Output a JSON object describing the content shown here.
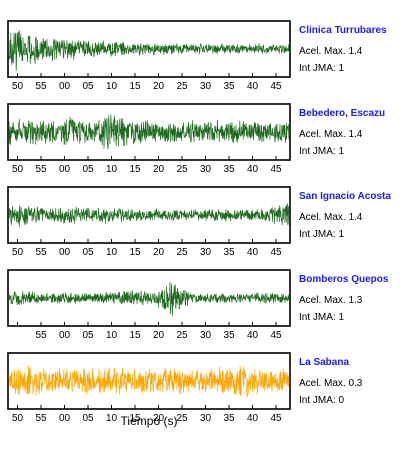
{
  "chart_data": {
    "type": "line",
    "xlabel": "Tiempo (s)",
    "x_tick_labels": [
      "50",
      "55",
      "00",
      "05",
      "10",
      "15",
      "20",
      "25",
      "30",
      "35",
      "40",
      "45"
    ],
    "panels": [
      {
        "name": "Clinica Turrubares",
        "info": [
          "Acel. Max. 1.4",
          "Int JMA: 1"
        ],
        "color": "#1e6b1e",
        "show_tick_labels": [
          "50",
          "55",
          "00",
          "05",
          "10",
          "15",
          "20",
          "25",
          "30",
          "35",
          "40",
          "45"
        ],
        "envelope": [
          0.95,
          0.8,
          0.6,
          0.5,
          0.45,
          0.42,
          0.38,
          0.35,
          0.33,
          0.3,
          0.28,
          0.26,
          0.25,
          0.24,
          0.24,
          0.23,
          0.22,
          0.22,
          0.21,
          0.2,
          0.2,
          0.2,
          0.19,
          0.19
        ]
      },
      {
        "name": "Bebedero, Escazu",
        "info": [
          "Acel. Max. 1.4",
          "Int JMA: 1"
        ],
        "color": "#1e6b1e",
        "show_tick_labels": [
          "50",
          "55",
          "00",
          "05",
          "10",
          "15",
          "20",
          "25",
          "30",
          "35",
          "40",
          "45"
        ],
        "envelope": [
          0.55,
          0.55,
          0.5,
          0.55,
          0.5,
          0.6,
          0.5,
          0.55,
          0.75,
          0.7,
          0.55,
          0.5,
          0.45,
          0.5,
          0.45,
          0.5,
          0.45,
          0.5,
          0.45,
          0.45,
          0.5,
          0.45,
          0.45,
          0.45
        ]
      },
      {
        "name": "San Ignacio Acosta",
        "info": [
          "Acel. Max. 1.4",
          "Int JMA: 1"
        ],
        "color": "#1e6b1e",
        "show_tick_labels": [
          "50",
          "55",
          "00",
          "05",
          "10",
          "15",
          "20",
          "25",
          "30",
          "35",
          "40",
          "45"
        ],
        "envelope": [
          0.45,
          0.5,
          0.35,
          0.3,
          0.3,
          0.4,
          0.3,
          0.3,
          0.35,
          0.3,
          0.25,
          0.25,
          0.25,
          0.25,
          0.25,
          0.25,
          0.25,
          0.25,
          0.3,
          0.25,
          0.25,
          0.3,
          0.45,
          0.6
        ]
      },
      {
        "name": "Bomberos Quepos",
        "info": [
          "Acel. Max. 1.3",
          "Int JMA: 1"
        ],
        "color": "#1e6b1e",
        "show_tick_labels": [
          "55",
          "00",
          "05",
          "10",
          "15",
          "20",
          "25",
          "30",
          "35",
          "40",
          "45"
        ],
        "envelope": [
          0.25,
          0.3,
          0.25,
          0.2,
          0.25,
          0.25,
          0.2,
          0.2,
          0.25,
          0.25,
          0.35,
          0.3,
          0.25,
          0.9,
          0.5,
          0.25,
          0.2,
          0.25,
          0.2,
          0.2,
          0.2,
          0.25,
          0.2,
          0.2
        ]
      },
      {
        "name": "La Sabana",
        "info": [
          "Acel. Max. 0.3",
          "Int JMA: 0"
        ],
        "color": "#ffa500",
        "show_tick_labels": [
          "50",
          "55",
          "00",
          "05",
          "10",
          "15",
          "20",
          "25",
          "30",
          "35",
          "40",
          "45"
        ],
        "envelope": [
          0.55,
          0.6,
          0.7,
          0.55,
          0.5,
          0.55,
          0.6,
          0.5,
          0.55,
          0.6,
          0.5,
          0.55,
          0.5,
          0.5,
          0.55,
          0.5,
          0.55,
          0.55,
          0.6,
          0.75,
          0.6,
          0.55,
          0.5,
          0.5
        ]
      }
    ]
  }
}
